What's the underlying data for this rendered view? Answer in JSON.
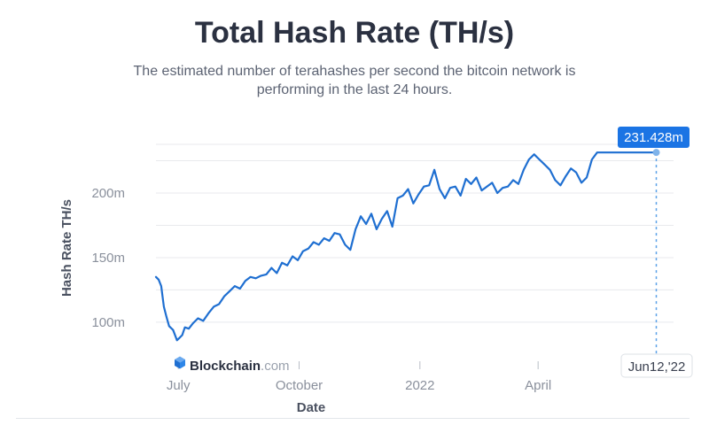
{
  "header": {
    "title": "Total Hash Rate (TH/s)",
    "subtitle": "The estimated number of terahashes per second the bitcoin network is performing in the last 24 hours."
  },
  "watermark": {
    "brand": "Blockchain",
    "suffix": ".com"
  },
  "colors": {
    "line": "#1f6fd1",
    "tooltip_bg": "#1b74e4",
    "grid": "#e8eaed",
    "axis_text": "#8a909c"
  },
  "chart_data": {
    "type": "line",
    "title": "Total Hash Rate (TH/s)",
    "xlabel": "Date",
    "ylabel": "Hash Rate TH/s",
    "ylim": [
      78,
      248
    ],
    "xlim": [
      0,
      382
    ],
    "y_ticks": [
      {
        "value": 100,
        "label": "100m"
      },
      {
        "value": 150,
        "label": "150m"
      },
      {
        "value": 200,
        "label": "200m"
      }
    ],
    "x_ticks": [
      {
        "value": 17,
        "label": "July"
      },
      {
        "value": 109,
        "label": "October"
      },
      {
        "value": 201,
        "label": "2022"
      },
      {
        "value": 291,
        "label": "April"
      }
    ],
    "series": [
      {
        "name": "Hash Rate",
        "x": [
          0,
          2,
          4,
          6,
          8,
          10,
          13,
          16,
          18,
          20,
          22,
          25,
          28,
          32,
          36,
          40,
          44,
          48,
          52,
          56,
          60,
          64,
          68,
          72,
          76,
          80,
          84,
          88,
          92,
          96,
          100,
          104,
          108,
          112,
          116,
          120,
          124,
          128,
          132,
          136,
          140,
          144,
          148,
          152,
          156,
          160,
          164,
          168,
          172,
          176,
          180,
          184,
          188,
          192,
          196,
          200,
          204,
          208,
          212,
          216,
          220,
          224,
          228,
          232,
          236,
          240,
          244,
          248,
          252,
          256,
          260,
          264,
          268,
          272,
          276,
          280,
          284,
          288,
          292,
          296,
          300,
          304,
          308,
          312,
          316,
          320,
          324,
          328,
          332,
          336,
          340,
          344,
          348,
          352,
          356,
          360,
          364,
          368,
          372,
          376,
          379,
          381
        ],
        "values": [
          135,
          133,
          128,
          112,
          104,
          97,
          94,
          86,
          88,
          90,
          96,
          95,
          99,
          103,
          101,
          107,
          112,
          114,
          120,
          124,
          128,
          126,
          132,
          135,
          134,
          136,
          137,
          142,
          138,
          146,
          144,
          151,
          148,
          155,
          157,
          162,
          160,
          165,
          163,
          169,
          168,
          160,
          156,
          172,
          182,
          176,
          184,
          172,
          180,
          186,
          174,
          196,
          198,
          203,
          192,
          199,
          205,
          206,
          218,
          203,
          196,
          204,
          205,
          198,
          211,
          207,
          212,
          202,
          205,
          208,
          200,
          204,
          205,
          210,
          207,
          218,
          226,
          230,
          226,
          222,
          218,
          210,
          206,
          213,
          219,
          216,
          208,
          212,
          226,
          231.428,
          231.428,
          231.428,
          231.428,
          231.428,
          231.428,
          231.428,
          231.428,
          231.428,
          231.428,
          231.428,
          231.428,
          231.428
        ]
      }
    ],
    "marker": {
      "x": 381,
      "value": 231.428,
      "label": "231.428m",
      "date_label": "Jun12,'22"
    }
  }
}
